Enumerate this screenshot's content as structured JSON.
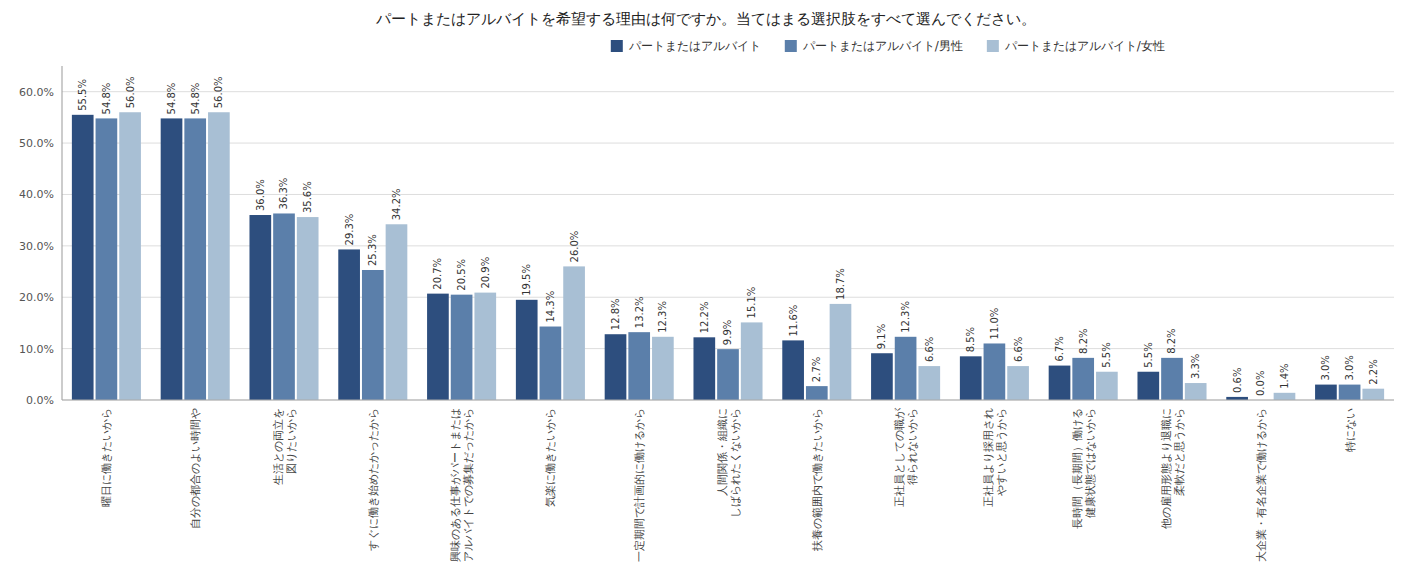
{
  "chart_data": {
    "type": "bar",
    "title": "パートまたはアルバイトを希望する理由は何ですか。当てはまる選択肢をすべて選んでください。",
    "categories": [
      "曜日に働きたいから",
      "自分の都合のよい時間や",
      "生活との両立を\n図りたいから",
      "すぐに働き始めたかったから",
      "興味のある仕事がパートまたは\nアルバイトでの募集だったから",
      "気楽に働きたいから",
      "一定期間で計画的に働けるから",
      "人間関係・組織に\nしばられたくないから",
      "扶養の範囲内で働きたいから",
      "正社員としての職が\n得られないから",
      "正社員より採用され\nやすいと思うから",
      "長時間（長期間）働ける\n健康状態ではないから",
      "他の雇用形態より退職に\n柔軟だと思うから",
      "大企業・有名企業で働けるから",
      "特にない"
    ],
    "series": [
      {
        "name": "パートまたはアルバイト",
        "color": "#2d4e7e",
        "values": [
          55.5,
          54.8,
          36.0,
          29.3,
          20.7,
          19.5,
          12.8,
          12.2,
          11.6,
          9.1,
          8.5,
          6.7,
          5.5,
          0.6,
          3.0
        ],
        "value_labels": [
          "55.5%",
          "54.8%",
          "36.0%",
          "29.3%",
          "20.7%",
          "19.5%",
          "12.8%",
          "12.2%",
          "11.6%",
          "9.1%",
          "8.5%",
          "6.7%",
          "5.5%",
          "0.6%",
          "3.0%"
        ]
      },
      {
        "name": "パートまたはアルバイト/男性",
        "color": "#5b7faa",
        "values": [
          54.8,
          54.8,
          36.3,
          25.3,
          20.5,
          14.3,
          13.2,
          9.9,
          2.7,
          12.3,
          11.0,
          8.2,
          8.2,
          0.0,
          3.0
        ],
        "value_labels": [
          "54.8%",
          "54.8%",
          "36.3%",
          "25.3%",
          "20.5%",
          "14.3%",
          "13.2%",
          "9.9%",
          "2.7%",
          "12.3%",
          "11.0%",
          "8.2%",
          "8.2%",
          "0.0%",
          "3.0%"
        ]
      },
      {
        "name": "パートまたはアルバイト/女性",
        "color": "#a8bfd4",
        "values": [
          56.0,
          56.0,
          35.6,
          34.2,
          20.9,
          26.0,
          12.3,
          15.1,
          18.7,
          6.6,
          6.6,
          5.5,
          3.3,
          1.4,
          2.2
        ],
        "value_labels": [
          "56.0%",
          "56.0%",
          "35.6%",
          "34.2%",
          "20.9%",
          "26.0%",
          "12.3%",
          "15.1%",
          "18.7%",
          "6.6%",
          "6.6%",
          "5.5%",
          "3.3%",
          "1.4%",
          "2.2%"
        ]
      }
    ],
    "ylim": [
      0,
      65
    ],
    "yticks": [
      {
        "value": 0,
        "label": "0.0%"
      },
      {
        "value": 10,
        "label": "10.0%"
      },
      {
        "value": 20,
        "label": "20.0%"
      },
      {
        "value": 30,
        "label": "30.0%"
      },
      {
        "value": 40,
        "label": "40.0%"
      },
      {
        "value": 50,
        "label": "50.0%"
      },
      {
        "value": 60,
        "label": "60.0%"
      }
    ],
    "grid": true,
    "data_labels": true,
    "legend": "top"
  }
}
